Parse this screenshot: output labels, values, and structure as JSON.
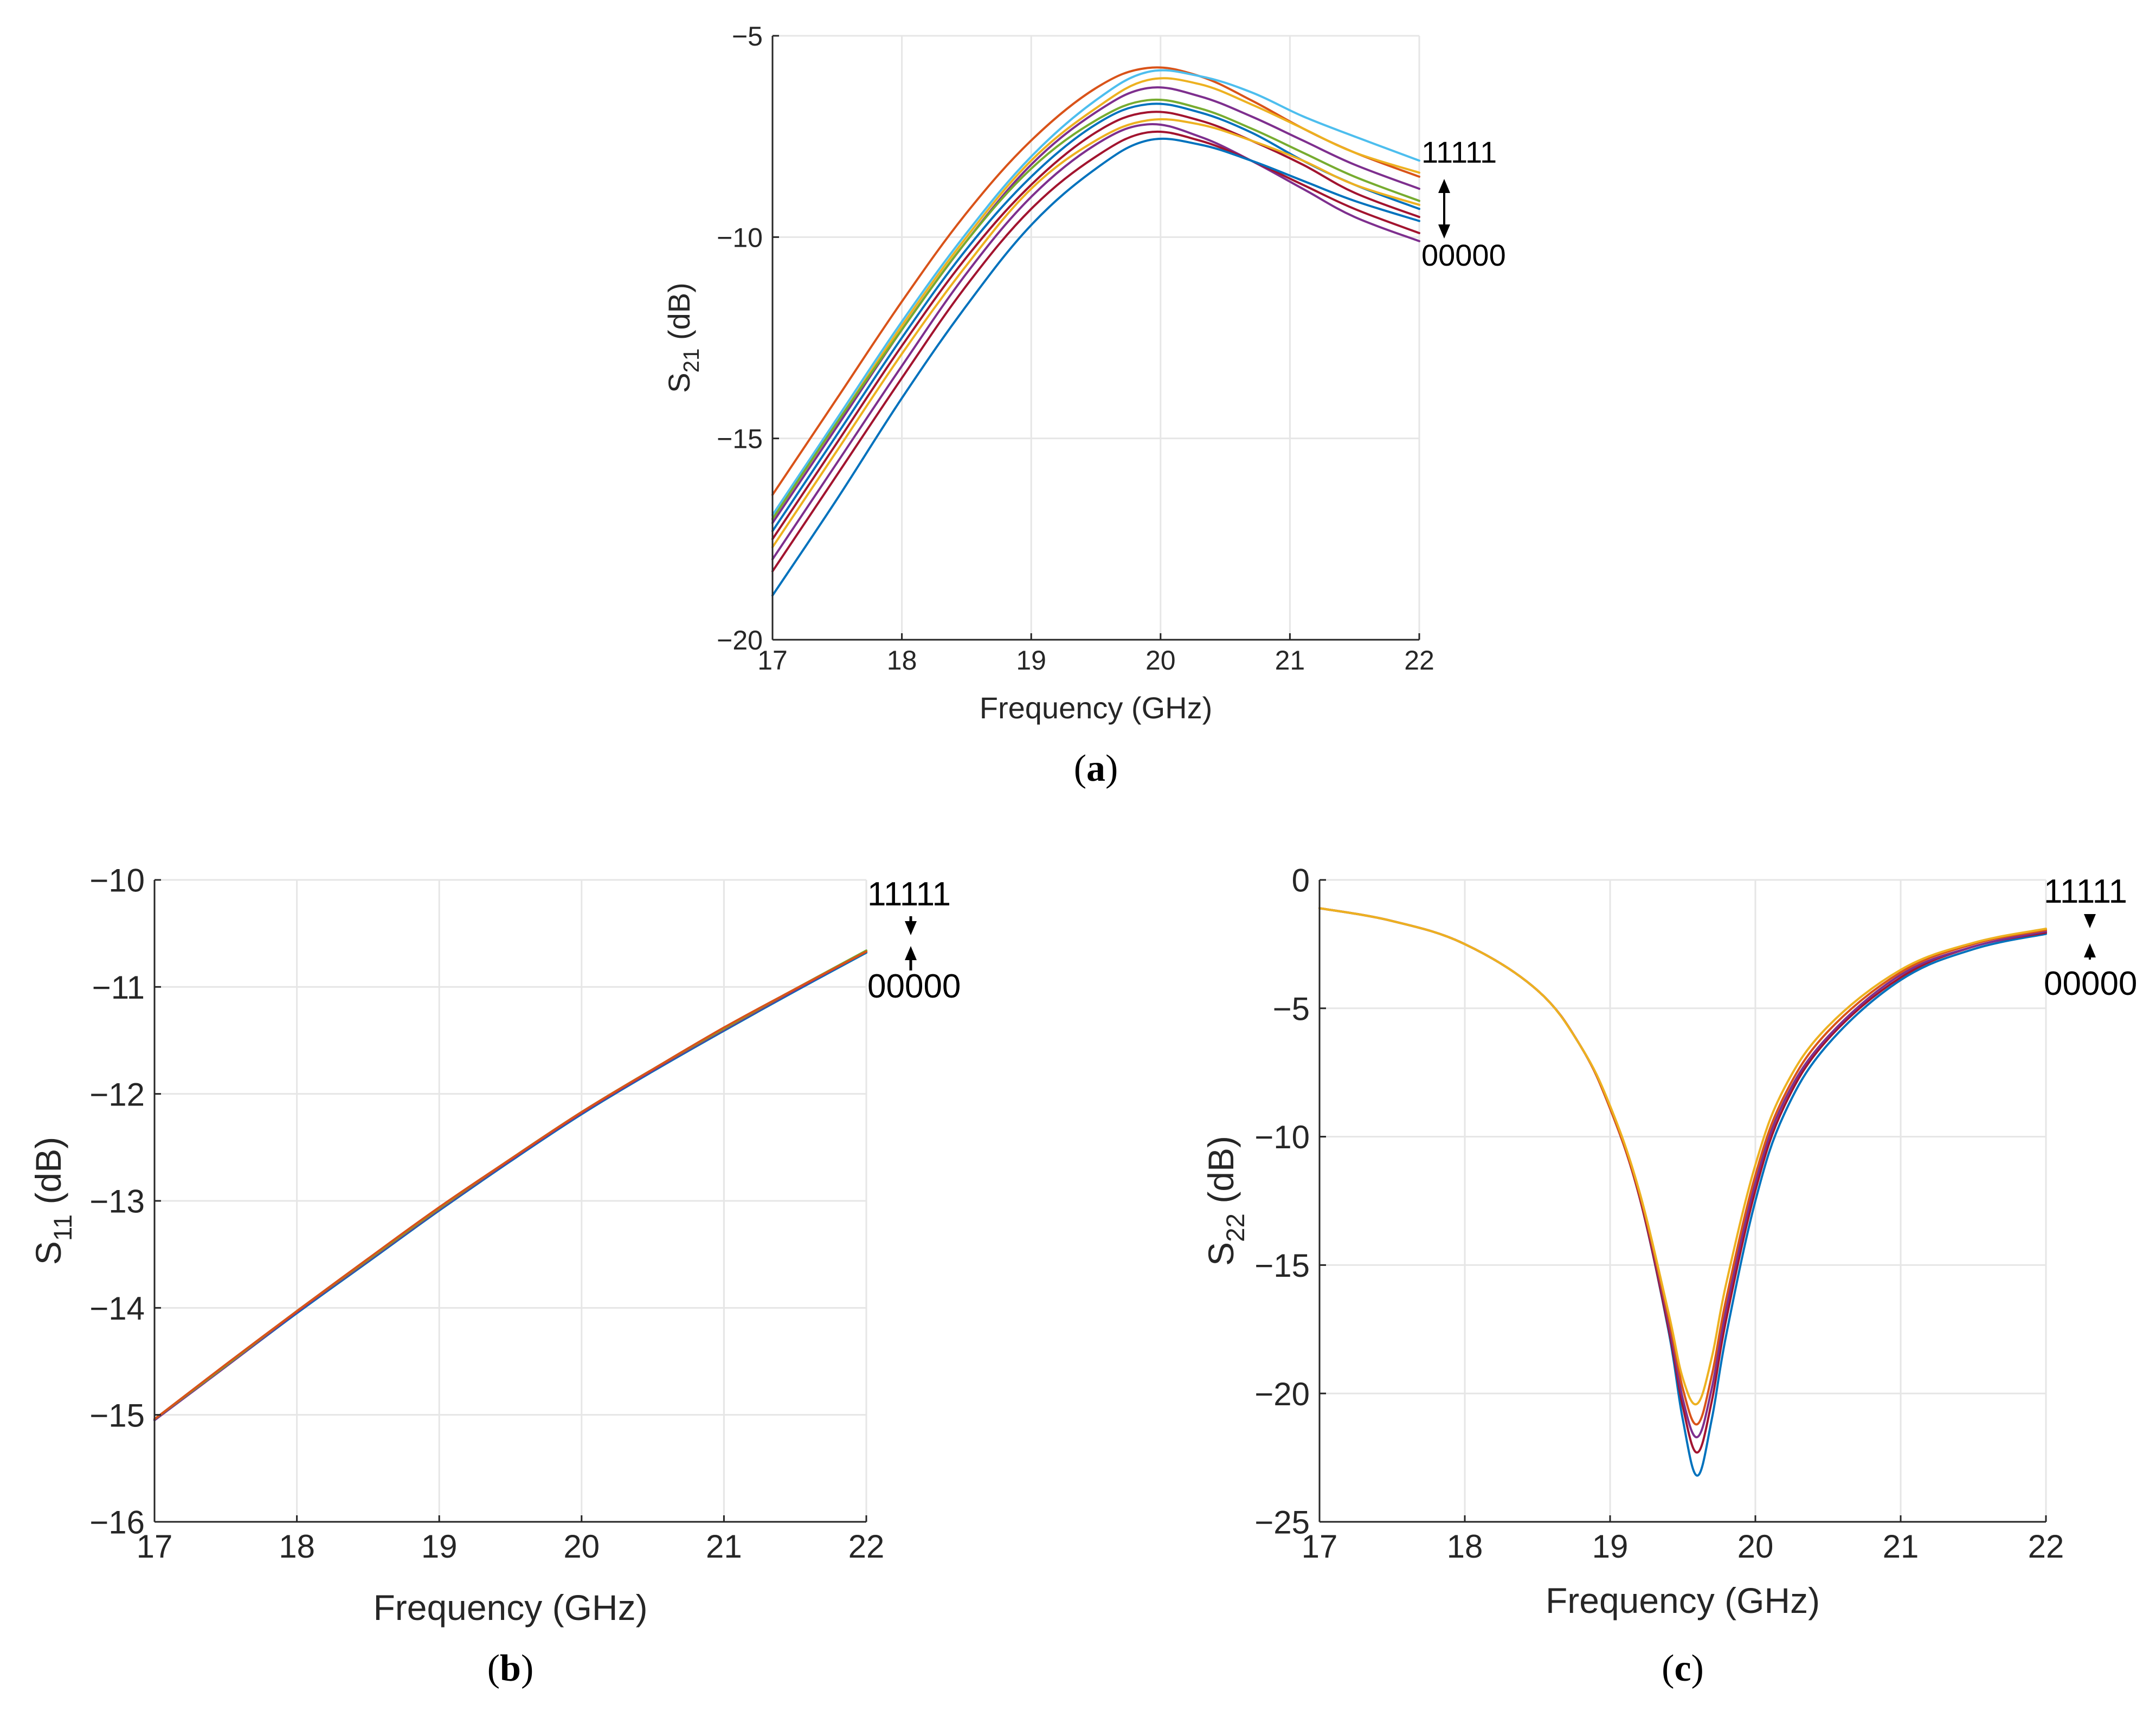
{
  "palette": [
    "#0072BD",
    "#D95319",
    "#EDB120",
    "#7E2F8E",
    "#77AC30",
    "#4DBEEE",
    "#A2142F"
  ],
  "chart_data": [
    {
      "id": "a",
      "type": "line",
      "panel_label": "(a)",
      "xlabel": "Frequency (GHz)",
      "ylabel_main": "S",
      "ylabel_sub": "21",
      "ylabel_unit": " (dB)",
      "xlim": [
        17,
        22
      ],
      "ylim": [
        -20,
        -5
      ],
      "xticks": [
        17,
        18,
        19,
        20,
        21,
        22
      ],
      "yticks": [
        -20,
        -15,
        -10,
        -5
      ],
      "xtick_labels": [
        "17",
        "18",
        "19",
        "20",
        "21",
        "22"
      ],
      "ytick_labels": [
        "−20",
        "−15",
        "−10",
        "−5"
      ],
      "grid": true,
      "annotation_top": "11111",
      "annotation_bottom": "00000",
      "x": [
        17,
        17.5,
        18,
        18.5,
        19,
        19.5,
        19.9,
        20.3,
        20.7,
        21.1,
        21.5,
        22
      ],
      "series": [
        {
          "name": "s1",
          "color": "#D95319",
          "values": [
            -16.4,
            -14.0,
            -11.6,
            -9.4,
            -7.6,
            -6.3,
            -5.8,
            -6.0,
            -6.6,
            -7.3,
            -7.9,
            -8.5
          ]
        },
        {
          "name": "s2",
          "color": "#4DBEEE",
          "values": [
            -16.9,
            -14.5,
            -12.1,
            -9.9,
            -8.0,
            -6.6,
            -5.9,
            -6.0,
            -6.4,
            -7.0,
            -7.5,
            -8.1
          ]
        },
        {
          "name": "s3",
          "color": "#EDB120",
          "values": [
            -17.0,
            -14.6,
            -12.2,
            -10.0,
            -8.1,
            -6.8,
            -6.1,
            -6.2,
            -6.7,
            -7.3,
            -7.9,
            -8.4
          ]
        },
        {
          "name": "s4",
          "color": "#7E2F8E",
          "values": [
            -17.1,
            -14.7,
            -12.3,
            -10.1,
            -8.2,
            -6.9,
            -6.3,
            -6.5,
            -7.0,
            -7.6,
            -8.2,
            -8.8
          ]
        },
        {
          "name": "s5",
          "color": "#77AC30",
          "values": [
            -17.0,
            -14.6,
            -12.3,
            -10.1,
            -8.3,
            -7.1,
            -6.6,
            -6.8,
            -7.3,
            -7.9,
            -8.5,
            -9.1
          ]
        },
        {
          "name": "s6",
          "color": "#0072BD",
          "values": [
            -17.3,
            -14.9,
            -12.5,
            -10.3,
            -8.5,
            -7.2,
            -6.7,
            -6.9,
            -7.4,
            -8.1,
            -8.7,
            -9.3
          ]
        },
        {
          "name": "s7",
          "color": "#A2142F",
          "values": [
            -17.5,
            -15.1,
            -12.7,
            -10.5,
            -8.7,
            -7.4,
            -6.9,
            -7.1,
            -7.6,
            -8.2,
            -8.9,
            -9.5
          ]
        },
        {
          "name": "s8",
          "color": "#EDB120",
          "values": [
            -17.7,
            -15.3,
            -12.9,
            -10.7,
            -8.8,
            -7.6,
            -7.1,
            -7.2,
            -7.6,
            -8.1,
            -8.7,
            -9.2
          ]
        },
        {
          "name": "s9",
          "color": "#7E2F8E",
          "values": [
            -18.0,
            -15.6,
            -13.2,
            -10.9,
            -9.0,
            -7.7,
            -7.2,
            -7.5,
            -8.1,
            -8.8,
            -9.5,
            -10.1
          ]
        },
        {
          "name": "s10",
          "color": "#A2142F",
          "values": [
            -18.3,
            -15.9,
            -13.5,
            -11.2,
            -9.3,
            -8.0,
            -7.4,
            -7.6,
            -8.1,
            -8.7,
            -9.3,
            -9.9
          ]
        },
        {
          "name": "s11",
          "color": "#0072BD",
          "values": [
            -18.9,
            -16.5,
            -14.0,
            -11.7,
            -9.7,
            -8.3,
            -7.6,
            -7.7,
            -8.1,
            -8.6,
            -9.1,
            -9.6
          ]
        }
      ]
    },
    {
      "id": "b",
      "type": "line",
      "panel_label": "(b)",
      "xlabel": "Frequency (GHz)",
      "ylabel_main": "S",
      "ylabel_sub": "11",
      "ylabel_unit": " (dB)",
      "xlim": [
        17,
        22
      ],
      "ylim": [
        -16,
        -10
      ],
      "xticks": [
        17,
        18,
        19,
        20,
        21,
        22
      ],
      "yticks": [
        -16,
        -15,
        -14,
        -13,
        -12,
        -11,
        -10
      ],
      "xtick_labels": [
        "17",
        "18",
        "19",
        "20",
        "21",
        "22"
      ],
      "ytick_labels": [
        "−16",
        "−15",
        "−14",
        "−13",
        "−12",
        "−11",
        "−10"
      ],
      "grid": true,
      "annotation_top": "11111",
      "annotation_bottom": "00000",
      "x": [
        17,
        17.5,
        18,
        18.5,
        19,
        19.5,
        20,
        20.5,
        21,
        21.5,
        22
      ],
      "series": [
        {
          "name": "s1",
          "color": "#0072BD",
          "values": [
            -15.05,
            -14.55,
            -14.05,
            -13.57,
            -13.09,
            -12.63,
            -12.19,
            -11.79,
            -11.41,
            -11.04,
            -10.68
          ]
        },
        {
          "name": "s2",
          "color": "#7E2F8E",
          "values": [
            -15.05,
            -14.55,
            -14.04,
            -13.56,
            -13.08,
            -12.62,
            -12.18,
            -11.78,
            -11.4,
            -11.03,
            -10.67
          ]
        },
        {
          "name": "s3",
          "color": "#77AC30",
          "values": [
            -15.04,
            -14.54,
            -14.03,
            -13.55,
            -13.07,
            -12.61,
            -12.17,
            -11.77,
            -11.39,
            -11.02,
            -10.66
          ]
        },
        {
          "name": "s4",
          "color": "#D95319",
          "values": [
            -15.04,
            -14.53,
            -14.03,
            -13.54,
            -13.06,
            -12.61,
            -12.17,
            -11.77,
            -11.38,
            -11.02,
            -10.67
          ]
        }
      ]
    },
    {
      "id": "c",
      "type": "line",
      "panel_label": "(c)",
      "xlabel": "Frequency (GHz)",
      "ylabel_main": "S",
      "ylabel_sub": "22",
      "ylabel_unit": " (dB)",
      "xlim": [
        17,
        22
      ],
      "ylim": [
        -25,
        0
      ],
      "xticks": [
        17,
        18,
        19,
        20,
        21,
        22
      ],
      "yticks": [
        -25,
        -20,
        -15,
        -10,
        -5,
        0
      ],
      "xtick_labels": [
        "17",
        "18",
        "19",
        "20",
        "21",
        "22"
      ],
      "ytick_labels": [
        "−25",
        "−20",
        "−15",
        "−10",
        "−5",
        "0"
      ],
      "grid": true,
      "annotation_top": "11111",
      "annotation_bottom": "00000",
      "x": [
        17,
        17.5,
        18,
        18.5,
        18.8,
        19,
        19.2,
        19.4,
        19.5,
        19.6,
        19.7,
        19.8,
        20,
        20.2,
        20.5,
        21,
        21.5,
        22
      ],
      "series": [
        {
          "name": "s1",
          "color": "#0072BD",
          "values": [
            -1.1,
            -1.6,
            -2.5,
            -4.3,
            -6.5,
            -8.9,
            -12.3,
            -17.5,
            -21.0,
            -23.2,
            -21.0,
            -17.7,
            -12.5,
            -9.1,
            -6.4,
            -3.9,
            -2.7,
            -2.1
          ]
        },
        {
          "name": "s2",
          "color": "#A2142F",
          "values": [
            -1.1,
            -1.6,
            -2.5,
            -4.3,
            -6.5,
            -8.9,
            -12.3,
            -17.4,
            -20.5,
            -22.3,
            -20.3,
            -17.1,
            -12.1,
            -8.8,
            -6.2,
            -3.8,
            -2.6,
            -2.05
          ]
        },
        {
          "name": "s3",
          "color": "#7E2F8E",
          "values": [
            -1.1,
            -1.6,
            -2.5,
            -4.3,
            -6.5,
            -8.9,
            -12.2,
            -17.2,
            -20.2,
            -21.7,
            -19.8,
            -16.7,
            -11.8,
            -8.6,
            -6.1,
            -3.7,
            -2.6,
            -2.0
          ]
        },
        {
          "name": "s4",
          "color": "#D95319",
          "values": [
            -1.1,
            -1.6,
            -2.5,
            -4.3,
            -6.5,
            -8.9,
            -12.2,
            -17.0,
            -19.8,
            -21.2,
            -19.3,
            -16.3,
            -11.5,
            -8.4,
            -5.9,
            -3.6,
            -2.5,
            -1.95
          ]
        },
        {
          "name": "s5",
          "color": "#EDB120",
          "values": [
            -1.1,
            -1.6,
            -2.5,
            -4.3,
            -6.5,
            -8.8,
            -12.1,
            -16.8,
            -19.4,
            -20.4,
            -18.6,
            -15.7,
            -11.1,
            -8.1,
            -5.7,
            -3.5,
            -2.45,
            -1.9
          ]
        }
      ]
    }
  ]
}
